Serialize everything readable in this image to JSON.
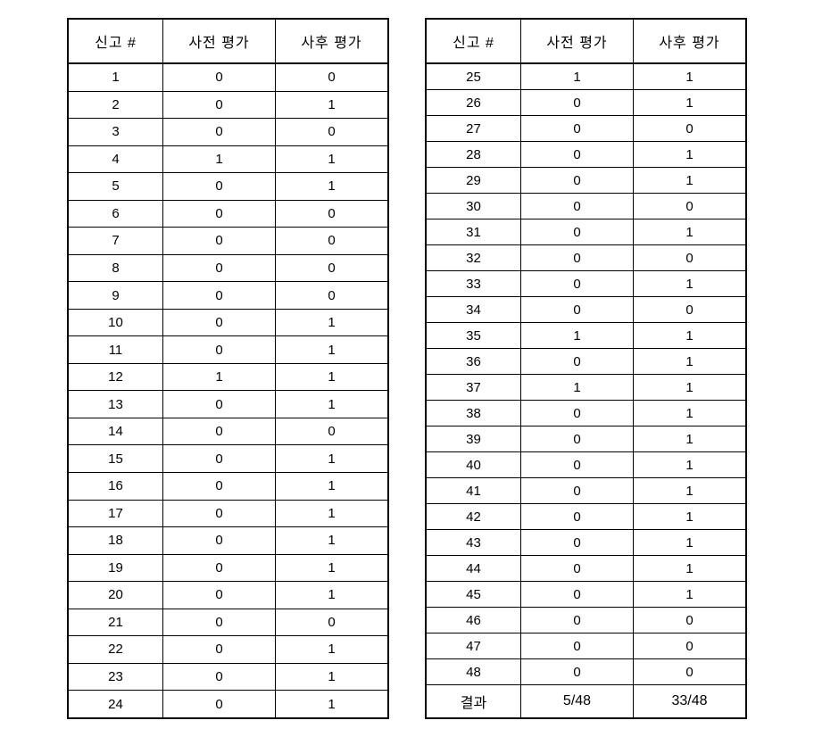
{
  "headers": {
    "id": "신고 #",
    "pre": "사전 평가",
    "post": "사후 평가",
    "result": "결과"
  },
  "left": {
    "rows": [
      {
        "id": "1",
        "pre": "0",
        "post": "0"
      },
      {
        "id": "2",
        "pre": "0",
        "post": "1"
      },
      {
        "id": "3",
        "pre": "0",
        "post": "0"
      },
      {
        "id": "4",
        "pre": "1",
        "post": "1"
      },
      {
        "id": "5",
        "pre": "0",
        "post": "1"
      },
      {
        "id": "6",
        "pre": "0",
        "post": "0"
      },
      {
        "id": "7",
        "pre": "0",
        "post": "0"
      },
      {
        "id": "8",
        "pre": "0",
        "post": "0"
      },
      {
        "id": "9",
        "pre": "0",
        "post": "0"
      },
      {
        "id": "10",
        "pre": "0",
        "post": "1"
      },
      {
        "id": "11",
        "pre": "0",
        "post": "1"
      },
      {
        "id": "12",
        "pre": "1",
        "post": "1"
      },
      {
        "id": "13",
        "pre": "0",
        "post": "1"
      },
      {
        "id": "14",
        "pre": "0",
        "post": "0"
      },
      {
        "id": "15",
        "pre": "0",
        "post": "1"
      },
      {
        "id": "16",
        "pre": "0",
        "post": "1"
      },
      {
        "id": "17",
        "pre": "0",
        "post": "1"
      },
      {
        "id": "18",
        "pre": "0",
        "post": "1"
      },
      {
        "id": "19",
        "pre": "0",
        "post": "1"
      },
      {
        "id": "20",
        "pre": "0",
        "post": "1"
      },
      {
        "id": "21",
        "pre": "0",
        "post": "0"
      },
      {
        "id": "22",
        "pre": "0",
        "post": "1"
      },
      {
        "id": "23",
        "pre": "0",
        "post": "1"
      },
      {
        "id": "24",
        "pre": "0",
        "post": "1"
      }
    ]
  },
  "right": {
    "rows": [
      {
        "id": "25",
        "pre": "1",
        "post": "1"
      },
      {
        "id": "26",
        "pre": "0",
        "post": "1"
      },
      {
        "id": "27",
        "pre": "0",
        "post": "0"
      },
      {
        "id": "28",
        "pre": "0",
        "post": "1"
      },
      {
        "id": "29",
        "pre": "0",
        "post": "1"
      },
      {
        "id": "30",
        "pre": "0",
        "post": "0"
      },
      {
        "id": "31",
        "pre": "0",
        "post": "1"
      },
      {
        "id": "32",
        "pre": "0",
        "post": "0"
      },
      {
        "id": "33",
        "pre": "0",
        "post": "1"
      },
      {
        "id": "34",
        "pre": "0",
        "post": "0"
      },
      {
        "id": "35",
        "pre": "1",
        "post": "1"
      },
      {
        "id": "36",
        "pre": "0",
        "post": "1"
      },
      {
        "id": "37",
        "pre": "1",
        "post": "1"
      },
      {
        "id": "38",
        "pre": "0",
        "post": "1"
      },
      {
        "id": "39",
        "pre": "0",
        "post": "1"
      },
      {
        "id": "40",
        "pre": "0",
        "post": "1"
      },
      {
        "id": "41",
        "pre": "0",
        "post": "1"
      },
      {
        "id": "42",
        "pre": "0",
        "post": "1"
      },
      {
        "id": "43",
        "pre": "0",
        "post": "1"
      },
      {
        "id": "44",
        "pre": "0",
        "post": "1"
      },
      {
        "id": "45",
        "pre": "0",
        "post": "1"
      },
      {
        "id": "46",
        "pre": "0",
        "post": "0"
      },
      {
        "id": "47",
        "pre": "0",
        "post": "0"
      },
      {
        "id": "48",
        "pre": "0",
        "post": "0"
      }
    ],
    "result": {
      "pre": "5/48",
      "post": "33/48"
    }
  }
}
